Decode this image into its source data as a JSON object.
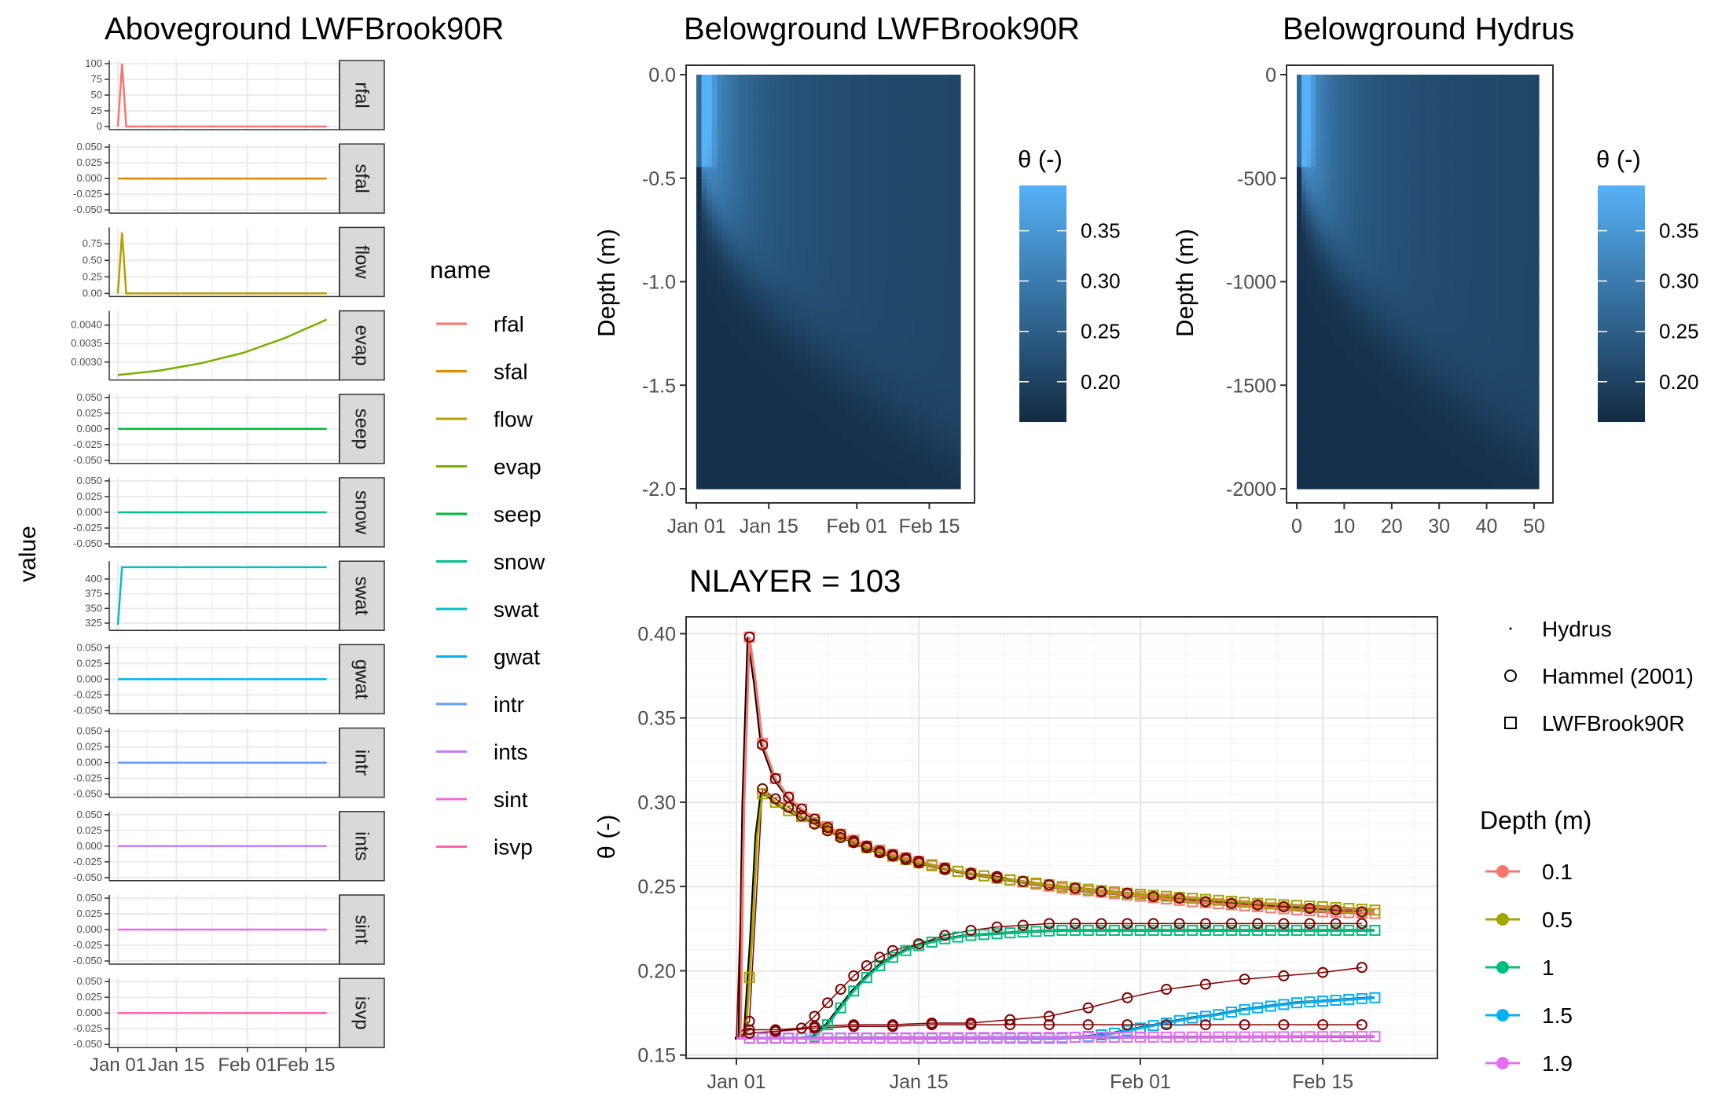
{
  "chart_data": [
    {
      "type": "line",
      "title": "Aboveground LWFBrook90R",
      "ylabel": "value",
      "xlabel": "",
      "x_ticks": [
        "Jan 01",
        "Jan 15",
        "Feb 01",
        "Feb 15"
      ],
      "legend": {
        "title": "name",
        "placement": "right",
        "entries": [
          "rfal",
          "sfal",
          "flow",
          "evap",
          "seep",
          "snow",
          "swat",
          "gwat",
          "intr",
          "ints",
          "sint",
          "isvp"
        ]
      },
      "facet_strip": "right",
      "facets": [
        {
          "name": "rfal",
          "color": "#F8766D",
          "ylim": [
            0,
            100
          ],
          "y_ticks": [
            "100",
            "75",
            "50",
            "25",
            "0"
          ],
          "y_tick_values": [
            100,
            75,
            50,
            25,
            0
          ],
          "x_days": [
            0,
            1,
            2,
            50
          ],
          "values": [
            0,
            100,
            0,
            0
          ]
        },
        {
          "name": "sfal",
          "color": "#DE8C00",
          "ylim": [
            -0.05,
            0.05
          ],
          "y_ticks": [
            "0.050",
            "0.025",
            "0.000",
            "-0.025",
            "-0.050"
          ],
          "y_tick_values": [
            0.05,
            0.025,
            0,
            -0.025,
            -0.05
          ],
          "x_days": [
            0,
            50
          ],
          "values": [
            0,
            0
          ]
        },
        {
          "name": "flow",
          "color": "#B79F00",
          "ylim": [
            0,
            0.95
          ],
          "y_ticks": [
            "0.75",
            "0.50",
            "0.25",
            "0.00"
          ],
          "y_tick_values": [
            0.75,
            0.5,
            0.25,
            0
          ],
          "x_days": [
            0,
            1,
            2,
            50
          ],
          "values": [
            0,
            0.92,
            0,
            0
          ]
        },
        {
          "name": "evap",
          "color": "#7CAE00",
          "ylim": [
            0.0026,
            0.0043
          ],
          "y_ticks": [
            "0.0040",
            "0.0035",
            "0.0030"
          ],
          "y_tick_values": [
            0.004,
            0.0035,
            0.003
          ],
          "x_days": [
            0,
            10,
            20,
            30,
            40,
            50
          ],
          "values": [
            0.00265,
            0.00277,
            0.00297,
            0.00325,
            0.00365,
            0.00415
          ]
        },
        {
          "name": "seep",
          "color": "#00BA38",
          "ylim": [
            -0.05,
            0.05
          ],
          "y_ticks": [
            "0.050",
            "0.025",
            "0.000",
            "-0.025",
            "-0.050"
          ],
          "y_tick_values": [
            0.05,
            0.025,
            0,
            -0.025,
            -0.05
          ],
          "x_days": [
            0,
            50
          ],
          "values": [
            0,
            0
          ]
        },
        {
          "name": "snow",
          "color": "#00C08B",
          "ylim": [
            -0.05,
            0.05
          ],
          "y_ticks": [
            "0.050",
            "0.025",
            "0.000",
            "-0.025",
            "-0.050"
          ],
          "y_tick_values": [
            0.05,
            0.025,
            0,
            -0.025,
            -0.05
          ],
          "x_days": [
            0,
            50
          ],
          "values": [
            0,
            0
          ]
        },
        {
          "name": "swat",
          "color": "#00BFC4",
          "ylim": [
            318,
            425
          ],
          "y_ticks": [
            "400",
            "375",
            "350",
            "325"
          ],
          "y_tick_values": [
            400,
            375,
            350,
            325
          ],
          "x_days": [
            0,
            1,
            50
          ],
          "values": [
            322,
            420,
            420
          ]
        },
        {
          "name": "gwat",
          "color": "#00B4F0",
          "ylim": [
            -0.05,
            0.05
          ],
          "y_ticks": [
            "0.050",
            "0.025",
            "0.000",
            "-0.025",
            "-0.050"
          ],
          "y_tick_values": [
            0.05,
            0.025,
            0,
            -0.025,
            -0.05
          ],
          "x_days": [
            0,
            50
          ],
          "values": [
            0,
            0
          ]
        },
        {
          "name": "intr",
          "color": "#619CFF",
          "ylim": [
            -0.05,
            0.05
          ],
          "y_ticks": [
            "0.050",
            "0.025",
            "0.000",
            "-0.025",
            "-0.050"
          ],
          "y_tick_values": [
            0.05,
            0.025,
            0,
            -0.025,
            -0.05
          ],
          "x_days": [
            0,
            50
          ],
          "values": [
            0,
            0
          ]
        },
        {
          "name": "ints",
          "color": "#C77CFF",
          "ylim": [
            -0.05,
            0.05
          ],
          "y_ticks": [
            "0.050",
            "0.025",
            "0.000",
            "-0.025",
            "-0.050"
          ],
          "y_tick_values": [
            0.05,
            0.025,
            0,
            -0.025,
            -0.05
          ],
          "x_days": [
            0,
            50
          ],
          "values": [
            0,
            0
          ]
        },
        {
          "name": "sint",
          "color": "#F564E3",
          "ylim": [
            -0.05,
            0.05
          ],
          "y_ticks": [
            "0.050",
            "0.025",
            "0.000",
            "-0.025",
            "-0.050"
          ],
          "y_tick_values": [
            0.05,
            0.025,
            0,
            -0.025,
            -0.05
          ],
          "x_days": [
            0,
            50
          ],
          "values": [
            0,
            0
          ]
        },
        {
          "name": "isvp",
          "color": "#FF64B0",
          "ylim": [
            -0.05,
            0.05
          ],
          "y_ticks": [
            "0.050",
            "0.025",
            "0.000",
            "-0.025",
            "-0.050"
          ],
          "y_tick_values": [
            0.05,
            0.025,
            0,
            -0.025,
            -0.05
          ],
          "x_days": [
            0,
            50
          ],
          "values": [
            0,
            0
          ]
        }
      ]
    },
    {
      "type": "heatmap",
      "title": "Belowground LWFBrook90R",
      "ylabel": "Depth (m)",
      "xlabel": "",
      "x_ticks": [
        "Jan 01",
        "Jan 15",
        "Feb 01",
        "Feb 15"
      ],
      "x_tick_days": [
        0,
        14,
        31,
        45
      ],
      "xlim_days": [
        0,
        51
      ],
      "y_ticks": [
        "0.0",
        "-0.5",
        "-1.0",
        "-1.5",
        "-2.0"
      ],
      "y_tick_values": [
        0,
        -0.5,
        -1.0,
        -1.5,
        -2.0
      ],
      "ylim": [
        -2.0,
        0.0
      ],
      "legend": {
        "title": "θ (-)",
        "placement": "right",
        "ticks": [
          "0.35",
          "0.30",
          "0.25",
          "0.20"
        ],
        "tick_values": [
          0.35,
          0.3,
          0.25,
          0.2
        ],
        "range": [
          0.16,
          0.395
        ]
      },
      "colors": {
        "low": "#132B43",
        "high": "#56B1F7"
      }
    },
    {
      "type": "heatmap",
      "title": "Belowground Hydrus",
      "ylabel": "Depth (m)",
      "xlabel": "",
      "x_ticks": [
        "0",
        "10",
        "20",
        "30",
        "40",
        "50"
      ],
      "x_tick_values": [
        0,
        10,
        20,
        30,
        40,
        50
      ],
      "xlim": [
        0,
        51
      ],
      "y_ticks": [
        "0",
        "-500",
        "-1000",
        "-1500",
        "-2000"
      ],
      "y_tick_values": [
        0,
        -500,
        -1000,
        -1500,
        -2000
      ],
      "ylim": [
        -2000,
        0
      ],
      "legend": {
        "title": "θ (-)",
        "placement": "right",
        "ticks": [
          "0.35",
          "0.30",
          "0.25",
          "0.20"
        ],
        "tick_values": [
          0.35,
          0.3,
          0.25,
          0.2
        ],
        "range": [
          0.16,
          0.395
        ]
      },
      "colors": {
        "low": "#132B43",
        "high": "#56B1F7"
      }
    },
    {
      "type": "line",
      "title": "NLAYER = 103",
      "ylabel": "θ (-)",
      "xlabel": "",
      "x_ticks": [
        "Jan 01",
        "Jan 15",
        "Feb 01",
        "Feb 15"
      ],
      "x_tick_days": [
        0,
        14,
        31,
        45
      ],
      "y_ticks": [
        "0.40",
        "0.35",
        "0.30",
        "0.25",
        "0.20",
        "0.15"
      ],
      "y_tick_values": [
        0.4,
        0.35,
        0.3,
        0.25,
        0.2,
        0.15
      ],
      "ylim": [
        0.148,
        0.41
      ],
      "legend_shape": {
        "entries": [
          "Hydrus",
          "Hammel (2001)",
          "LWFBrook90R"
        ],
        "placement": "right"
      },
      "legend_color": {
        "title": "Depth (m)",
        "placement": "right",
        "entries": [
          "0.1",
          "0.5",
          "1",
          "1.5",
          "1.9"
        ]
      },
      "series": [
        {
          "name": "0.1",
          "color": "#F8766D",
          "x_days": [
            0,
            0.3,
            0.6,
            1,
            1.5,
            2,
            3,
            4,
            5,
            6,
            8,
            10,
            12,
            14,
            17,
            20,
            25,
            30,
            35,
            40,
            45,
            49
          ],
          "values": [
            0.16,
            0.16,
            0.3,
            0.398,
            0.37,
            0.335,
            0.314,
            0.303,
            0.296,
            0.29,
            0.281,
            0.274,
            0.269,
            0.265,
            0.259,
            0.255,
            0.249,
            0.245,
            0.241,
            0.238,
            0.235,
            0.234
          ]
        },
        {
          "name": "0.5",
          "color": "#A3A500",
          "x_days": [
            0,
            0.7,
            1.2,
            1.6,
            2,
            2.5,
            3,
            4,
            6,
            8,
            10,
            12,
            14,
            17,
            20,
            25,
            30,
            35,
            40,
            45,
            49
          ],
          "values": [
            0.16,
            0.16,
            0.22,
            0.28,
            0.305,
            0.304,
            0.3,
            0.295,
            0.288,
            0.28,
            0.273,
            0.268,
            0.264,
            0.259,
            0.255,
            0.25,
            0.246,
            0.243,
            0.24,
            0.238,
            0.236
          ]
        },
        {
          "name": "1",
          "color": "#00BF7D",
          "x_days": [
            0,
            5,
            6,
            7,
            8,
            9,
            10,
            11,
            12,
            13,
            14,
            16,
            18,
            20,
            22,
            25,
            28,
            31,
            34,
            37,
            40,
            43,
            46,
            49
          ],
          "values": [
            0.16,
            0.16,
            0.161,
            0.168,
            0.178,
            0.188,
            0.196,
            0.203,
            0.208,
            0.212,
            0.215,
            0.219,
            0.221,
            0.222,
            0.223,
            0.224,
            0.224,
            0.224,
            0.224,
            0.224,
            0.224,
            0.224,
            0.224,
            0.224
          ]
        },
        {
          "name": "1.5",
          "color": "#00B0F6",
          "x_days": [
            0,
            25,
            27,
            29,
            31,
            33,
            35,
            37,
            39,
            41,
            43,
            45,
            47,
            49
          ],
          "values": [
            0.16,
            0.16,
            0.161,
            0.163,
            0.166,
            0.169,
            0.172,
            0.174,
            0.177,
            0.179,
            0.181,
            0.182,
            0.183,
            0.184
          ]
        },
        {
          "name": "1.9",
          "color": "#E76BF3",
          "x_days": [
            0,
            49
          ],
          "values": [
            0.16,
            0.161
          ]
        }
      ],
      "hammel_points": {
        "0.1": {
          "x_days": [
            1,
            2,
            3,
            4,
            5,
            6,
            7,
            8,
            9,
            10,
            11,
            12,
            13,
            14,
            16,
            18,
            20,
            22,
            24,
            26,
            28,
            30,
            32,
            34,
            36,
            38,
            40,
            42,
            44,
            46,
            48
          ],
          "values": [
            0.398,
            0.334,
            0.314,
            0.303,
            0.296,
            0.29,
            0.285,
            0.281,
            0.277,
            0.274,
            0.271,
            0.269,
            0.267,
            0.265,
            0.261,
            0.258,
            0.256,
            0.253,
            0.251,
            0.249,
            0.247,
            0.246,
            0.244,
            0.243,
            0.241,
            0.24,
            0.239,
            0.238,
            0.237,
            0.236,
            0.235
          ]
        },
        "0.5": {
          "x_days": [
            1,
            2,
            3,
            4,
            5,
            6,
            7,
            8,
            9,
            10,
            11,
            12,
            13,
            14,
            16,
            18,
            20,
            22,
            24,
            26,
            28,
            30,
            32,
            34,
            36,
            38,
            40,
            42,
            44,
            46,
            48
          ],
          "values": [
            0.17,
            0.308,
            0.302,
            0.297,
            0.292,
            0.287,
            0.283,
            0.279,
            0.276,
            0.273,
            0.27,
            0.268,
            0.266,
            0.264,
            0.26,
            0.257,
            0.255,
            0.253,
            0.251,
            0.249,
            0.247,
            0.246,
            0.244,
            0.243,
            0.241,
            0.24,
            0.239,
            0.238,
            0.237,
            0.236,
            0.235
          ]
        },
        "1": {
          "x_days": [
            1,
            3,
            5,
            6,
            7,
            8,
            9,
            10,
            11,
            12,
            14,
            16,
            18,
            20,
            22,
            24,
            26,
            28,
            30,
            32,
            34,
            36,
            38,
            40,
            42,
            44,
            46,
            48
          ],
          "values": [
            0.165,
            0.165,
            0.166,
            0.173,
            0.181,
            0.189,
            0.197,
            0.203,
            0.208,
            0.212,
            0.216,
            0.221,
            0.224,
            0.226,
            0.227,
            0.228,
            0.228,
            0.228,
            0.228,
            0.228,
            0.228,
            0.228,
            0.228,
            0.228,
            0.228,
            0.228,
            0.228,
            0.228
          ]
        },
        "1.5": {
          "x_days": [
            1,
            3,
            6,
            9,
            12,
            15,
            18,
            21,
            24,
            27,
            30,
            33,
            36,
            39,
            42,
            45,
            48
          ],
          "values": [
            0.163,
            0.164,
            0.167,
            0.168,
            0.168,
            0.169,
            0.169,
            0.171,
            0.173,
            0.178,
            0.184,
            0.189,
            0.192,
            0.195,
            0.197,
            0.199,
            0.202
          ]
        },
        "1.9": {
          "x_days": [
            1,
            3,
            6,
            9,
            12,
            15,
            18,
            21,
            24,
            27,
            30,
            33,
            36,
            39,
            42,
            45,
            48
          ],
          "values": [
            0.163,
            0.164,
            0.166,
            0.167,
            0.167,
            0.168,
            0.168,
            0.168,
            0.168,
            0.168,
            0.168,
            0.168,
            0.168,
            0.168,
            0.168,
            0.168,
            0.168
          ]
        }
      }
    }
  ]
}
